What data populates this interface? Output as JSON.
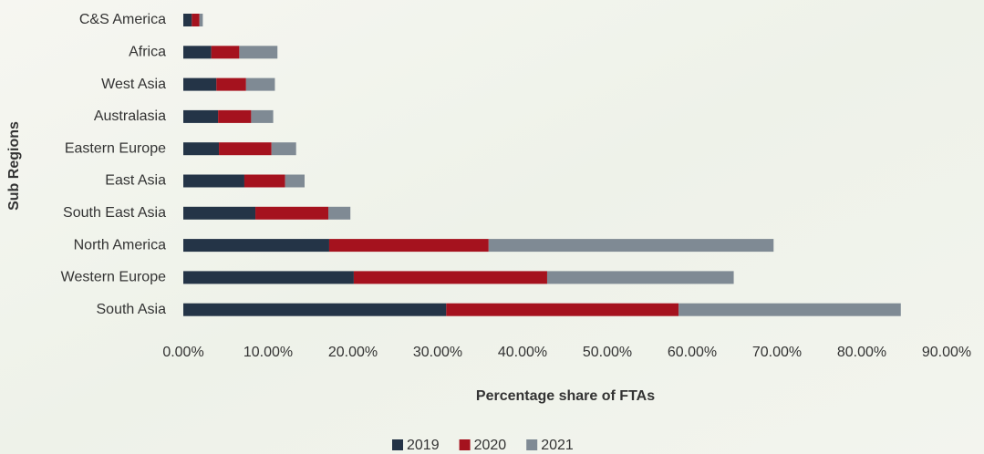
{
  "chart_data": {
    "type": "stacked_barh",
    "x_label": "Percentage share of FTAs",
    "y_label": "Sub Regions",
    "categories": [
      "C&S America",
      "Africa",
      "West Asia",
      "Australasia",
      "Eastern Europe",
      "East Asia",
      "South East Asia",
      "North America",
      "Western Europe",
      "South Asia"
    ],
    "series": [
      {
        "name": "2019",
        "color": "#243447",
        "values": [
          1.0,
          3.3,
          3.9,
          4.1,
          4.2,
          7.2,
          8.5,
          17.2,
          20.1,
          31.0
        ]
      },
      {
        "name": "2020",
        "color": "#a5121e",
        "values": [
          0.9,
          3.3,
          3.5,
          3.9,
          6.2,
          4.8,
          8.6,
          18.8,
          22.8,
          27.4
        ]
      },
      {
        "name": "2021",
        "color": "#7f8a94",
        "values": [
          0.4,
          4.5,
          3.4,
          2.6,
          2.9,
          2.3,
          2.6,
          33.6,
          22.0,
          26.2
        ]
      }
    ],
    "xlim": [
      0,
      90
    ],
    "xticks": [
      {
        "value": 0,
        "label": "0.00%"
      },
      {
        "value": 10,
        "label": "10.00%"
      },
      {
        "value": 20,
        "label": "20.00%"
      },
      {
        "value": 30,
        "label": "30.00%"
      },
      {
        "value": 40,
        "label": "40.00%"
      },
      {
        "value": 50,
        "label": "50.00%"
      },
      {
        "value": 60,
        "label": "60.00%"
      },
      {
        "value": 70,
        "label": "70.00%"
      },
      {
        "value": 80,
        "label": "80.00%"
      },
      {
        "value": 90,
        "label": "90.00%"
      }
    ],
    "legend": "bottom"
  }
}
